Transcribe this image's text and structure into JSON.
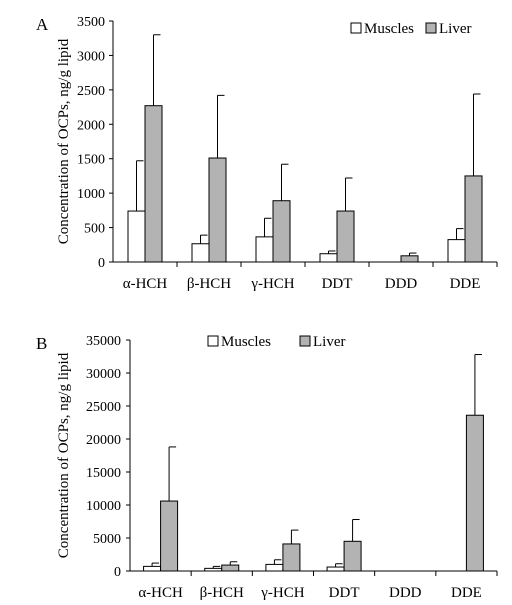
{
  "chart_data": [
    {
      "panel_label": "A",
      "type": "bar",
      "ylabel": "Concentration of OCPs, ng/g lipid",
      "ylim": [
        0,
        3500
      ],
      "yticks": [
        0,
        500,
        1000,
        1500,
        2000,
        2500,
        3000,
        3500
      ],
      "categories": [
        "α-HCH",
        "β-HCH",
        "γ-HCH",
        "DDT",
        "DDD",
        "DDE"
      ],
      "legend_position": "top-right",
      "series": [
        {
          "name": "Muscles",
          "color": "#ffffff",
          "values": [
            740,
            265,
            365,
            120,
            0,
            325
          ],
          "errors": [
            730,
            125,
            270,
            40,
            0,
            160
          ]
        },
        {
          "name": "Liver",
          "color": "#b3b3b3",
          "values": [
            2270,
            1510,
            890,
            740,
            90,
            1250
          ],
          "errors": [
            1030,
            910,
            530,
            480,
            40,
            1190
          ]
        }
      ]
    },
    {
      "panel_label": "B",
      "type": "bar",
      "ylabel": "Concentration of OCPs, ng/g lipid",
      "ylim": [
        0,
        35000
      ],
      "yticks": [
        0,
        5000,
        10000,
        15000,
        20000,
        25000,
        30000,
        35000
      ],
      "categories": [
        "α-HCH",
        "β-HCH",
        "γ-HCH",
        "DDT",
        "DDD",
        "DDE"
      ],
      "legend_position": "top",
      "series": [
        {
          "name": "Muscles",
          "color": "#ffffff",
          "values": [
            700,
            400,
            1000,
            600,
            0,
            0
          ],
          "errors": [
            500,
            300,
            700,
            500,
            0,
            0
          ]
        },
        {
          "name": "Liver",
          "color": "#b3b3b3",
          "values": [
            10600,
            900,
            4100,
            4500,
            0,
            23600
          ],
          "errors": [
            8200,
            500,
            2100,
            3300,
            0,
            9200
          ]
        }
      ]
    }
  ]
}
